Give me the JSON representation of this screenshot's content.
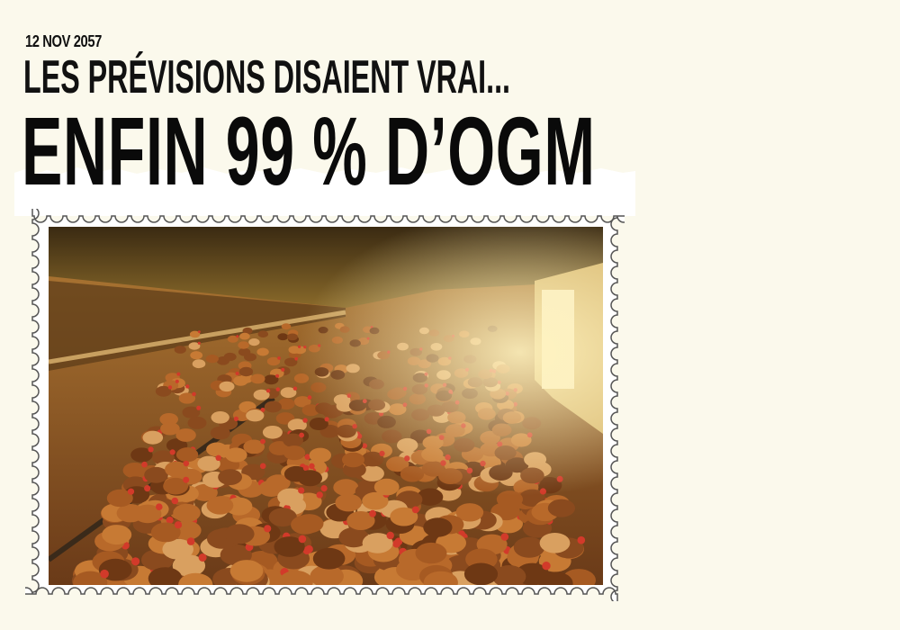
{
  "header": {
    "date": "12 NOV 2057",
    "subtitle": "LES PRÉVISIONS DISAIENT VRAI...",
    "title": "ENFIN 99 % D’OGM"
  },
  "stamp": {
    "photo_subject": "battery-hens-barn"
  },
  "colors": {
    "background": "#fbf9ec",
    "text": "#111111",
    "stamp_paper": "#ffffff",
    "stamp_edge": "#555555"
  }
}
